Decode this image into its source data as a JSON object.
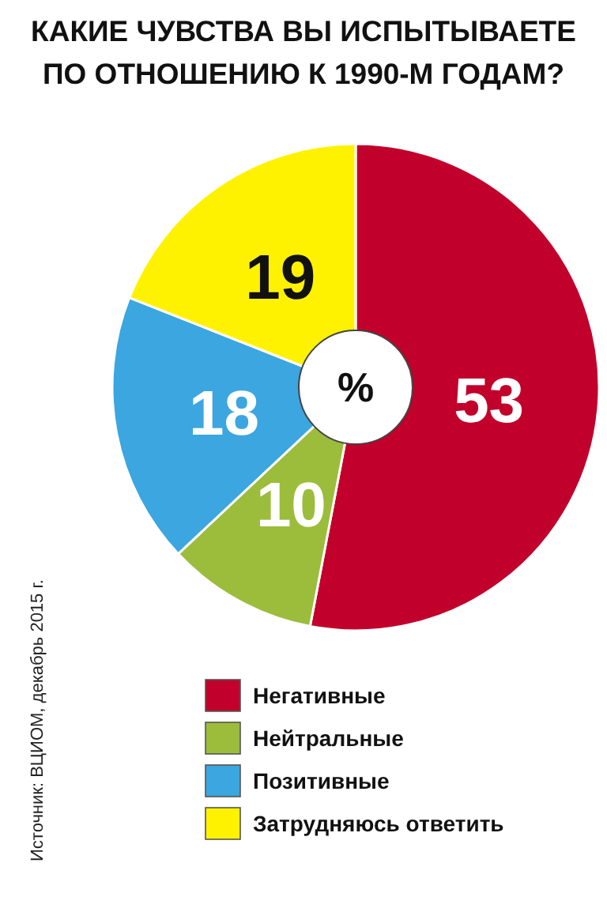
{
  "chart_data": {
    "type": "donut",
    "title": "КАКИЕ ЧУВСТВА ВЫ ИСПЫТЫВАЕТЕ\nПО ОТНОШЕНИЮ К 1990-М ГОДАМ?",
    "categories": [
      "Негативные",
      "Нейтральные",
      "Позитивные",
      "Затрудняюсь ответить"
    ],
    "values": [
      53,
      10,
      18,
      19
    ],
    "colors": [
      "#c1002b",
      "#9cbc3c",
      "#3ba6df",
      "#fff200"
    ],
    "data_labels": true,
    "legend": "bottom",
    "annotations": [
      "%",
      "Источник: ВЦИОМ, декабрь 2015 г."
    ]
  }
}
